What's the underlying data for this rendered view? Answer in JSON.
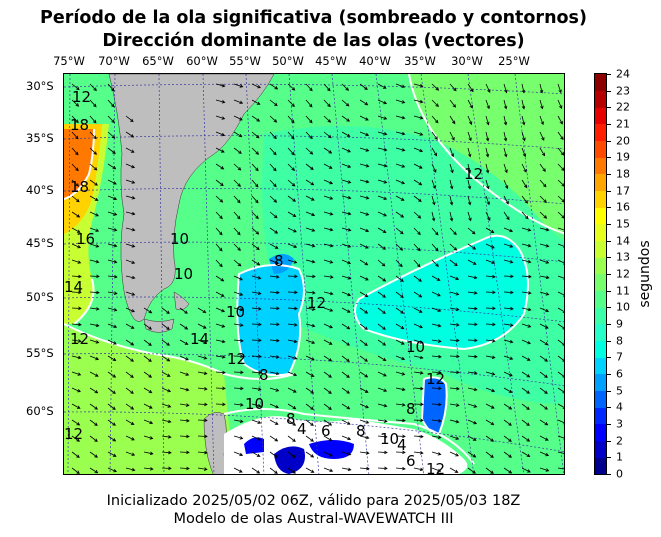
{
  "title_line1": "Período de la ola significativa (sombreado y contornos)",
  "title_line2": "Dirección dominante de las olas (vectores)",
  "footer_line1": "Inicializado 2025/05/02 06Z, válido para 2025/05/03 18Z",
  "footer_line2": "Modelo de olas Austral-WAVEWATCH III",
  "lon_labels": [
    "75°W",
    "70°W",
    "65°W",
    "60°W",
    "55°W",
    "50°W",
    "45°W",
    "40°W",
    "35°W",
    "30°W",
    "25°W"
  ],
  "lat_labels": [
    "30°S",
    "35°S",
    "40°S",
    "45°S",
    "50°S",
    "55°S",
    "60°S"
  ],
  "colorbar": {
    "label": "segundos",
    "ticks": [
      "0",
      "1",
      "2",
      "3",
      "4",
      "5",
      "6",
      "7",
      "8",
      "9",
      "10",
      "11",
      "12",
      "13",
      "14",
      "15",
      "16",
      "17",
      "18",
      "19",
      "20",
      "21",
      "22",
      "23",
      "24"
    ],
    "colors": [
      "#00008f",
      "#0000c8",
      "#0000ff",
      "#0028ff",
      "#0064ff",
      "#00a0ff",
      "#00d2ff",
      "#00ffe0",
      "#28ffc8",
      "#3cffa8",
      "#55ff8a",
      "#78ff6e",
      "#9bff50",
      "#c8ff32",
      "#e6ff1e",
      "#ffff00",
      "#ffd200",
      "#ffa500",
      "#ff7800",
      "#ff4b00",
      "#ff1e00",
      "#e60000",
      "#b40000",
      "#8c0000"
    ]
  },
  "contour_labels": [
    {
      "text": "12"
    },
    {
      "text": "18"
    },
    {
      "text": "18"
    },
    {
      "text": "16"
    },
    {
      "text": "14"
    },
    {
      "text": "12"
    },
    {
      "text": "12"
    },
    {
      "text": "12"
    },
    {
      "text": "10"
    },
    {
      "text": "10"
    },
    {
      "text": "8"
    },
    {
      "text": "10"
    },
    {
      "text": "12"
    },
    {
      "text": "14"
    },
    {
      "text": "12"
    },
    {
      "text": "8"
    },
    {
      "text": "10"
    },
    {
      "text": "8"
    },
    {
      "text": "4"
    },
    {
      "text": "6"
    },
    {
      "text": "8"
    },
    {
      "text": "10"
    },
    {
      "text": "4"
    },
    {
      "text": "6"
    },
    {
      "text": "12"
    },
    {
      "text": "10"
    },
    {
      "text": "8"
    },
    {
      "text": "12"
    }
  ]
}
